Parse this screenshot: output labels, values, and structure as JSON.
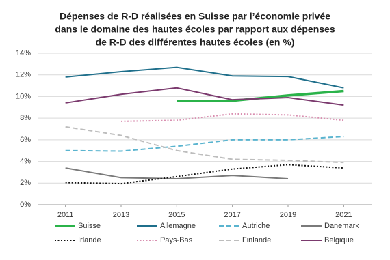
{
  "chart_data": {
    "type": "line",
    "title": [
      "Dépenses de R-D réalisées en Suisse par l’économie privée",
      "dans le domaine des hautes écoles par rapport aux dépenses",
      "de R-D des différentes hautes écoles (en %)"
    ],
    "x": [
      2011,
      2013,
      2015,
      2017,
      2019,
      2021
    ],
    "xlim": [
      2010,
      2022
    ],
    "xticks": [
      2011,
      2013,
      2015,
      2017,
      2019,
      2021
    ],
    "ylim": [
      0,
      14
    ],
    "yticks": [
      {
        "value": 0,
        "label": "0%"
      },
      {
        "value": 2,
        "label": "2%"
      },
      {
        "value": 4,
        "label": "4%"
      },
      {
        "value": 6,
        "label": "6%"
      },
      {
        "value": 8,
        "label": "8%"
      },
      {
        "value": 10,
        "label": "10%"
      },
      {
        "value": 12,
        "label": "12%"
      },
      {
        "value": 14,
        "label": "14%"
      }
    ],
    "grid": true,
    "series": [
      {
        "name": "Suisse",
        "color": "#2bb34a",
        "style": "solid",
        "width": 3.5,
        "values": [
          null,
          null,
          9.6,
          9.6,
          10.1,
          10.5
        ]
      },
      {
        "name": "Allemagne",
        "color": "#1f6f8b",
        "style": "solid",
        "width": 2,
        "values": [
          11.8,
          12.3,
          12.7,
          11.9,
          11.85,
          10.8
        ]
      },
      {
        "name": "Autriche",
        "color": "#5ab4cf",
        "style": "dashed",
        "width": 2,
        "values": [
          5.0,
          4.95,
          5.4,
          6.0,
          6.0,
          6.3
        ]
      },
      {
        "name": "Danemark",
        "color": "#7a7a7a",
        "style": "solid",
        "width": 2,
        "values": [
          3.4,
          2.5,
          2.4,
          2.7,
          2.4,
          null
        ]
      },
      {
        "name": "Irlande",
        "color": "#111111",
        "style": "dotted",
        "width": 2,
        "values": [
          2.05,
          1.95,
          2.6,
          3.3,
          3.7,
          3.4
        ]
      },
      {
        "name": "Pays-Bas",
        "color": "#d98fb0",
        "style": "dotted",
        "width": 2,
        "values": [
          null,
          7.7,
          7.8,
          8.4,
          8.3,
          7.8
        ]
      },
      {
        "name": "Finlande",
        "color": "#bdbdbd",
        "style": "dashed",
        "width": 2,
        "values": [
          7.2,
          6.4,
          5.0,
          4.2,
          4.1,
          3.9
        ]
      },
      {
        "name": "Belgique",
        "color": "#7b3a6e",
        "style": "solid",
        "width": 2,
        "values": [
          9.4,
          10.2,
          10.8,
          9.7,
          9.9,
          9.2
        ]
      }
    ]
  }
}
